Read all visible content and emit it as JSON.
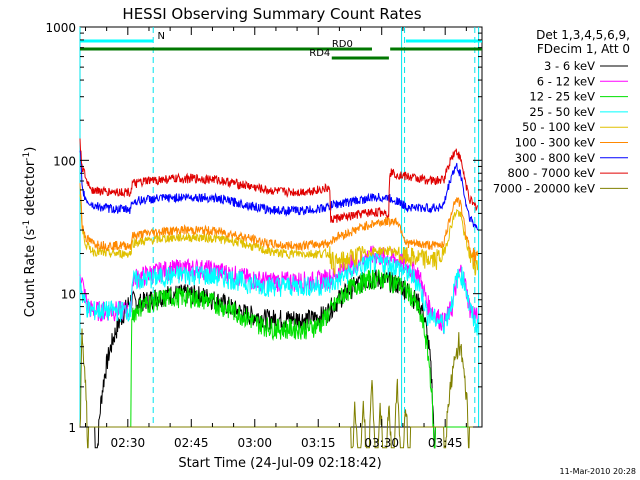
{
  "chart_data": {
    "type": "line",
    "title": "HESSI Observing Summary Count Rates",
    "xlabel": "Start Time (24-Jul-09 02:18:42)",
    "ylabel_main": "Count Rate (s",
    "ylabel_sup1": "-1",
    "ylabel_mid": " detector",
    "ylabel_sup2": "-1",
    "ylabel_end": ")",
    "yscale": "log",
    "ylim": [
      1,
      1000
    ],
    "xlim_minutes": [
      0,
      95
    ],
    "x_ticks": [
      {
        "label": "02:30",
        "min": 11.3
      },
      {
        "label": "02:45",
        "min": 26.3
      },
      {
        "label": "03:00",
        "min": 41.3
      },
      {
        "label": "03:15",
        "min": 56.3
      },
      {
        "label": "03:30",
        "min": 71.3
      },
      {
        "label": "03:45",
        "min": 86.3
      }
    ],
    "y_ticks": [
      {
        "label": "1",
        "value": 1
      },
      {
        "label": "10",
        "value": 10
      },
      {
        "label": "100",
        "value": 100
      },
      {
        "label": "1000",
        "value": 1000
      }
    ],
    "legend_header": [
      "Det 1,3,4,5,6,9,",
      "FDecim 1, Att 0"
    ],
    "series": [
      {
        "name": "3 - 6 keV",
        "color": "#000000",
        "x": [
          0,
          1,
          2,
          3,
          3.5,
          12,
          14,
          18,
          22,
          26,
          30,
          34,
          37,
          40,
          44,
          48,
          52,
          55,
          58,
          61,
          64,
          67,
          70,
          73,
          76,
          78,
          80,
          81,
          84,
          86,
          87,
          89,
          90,
          92,
          94
        ],
        "y": [
          0,
          0,
          0,
          0,
          0,
          9,
          8.5,
          9.5,
          10,
          10,
          9.5,
          8.5,
          7.5,
          7,
          6.5,
          6.5,
          6.5,
          6.5,
          7,
          9,
          11,
          12.5,
          13,
          12.5,
          11.5,
          10,
          8.5,
          7.5,
          0,
          0,
          0,
          0,
          0,
          0,
          0
        ]
      },
      {
        "name": "6 - 12 keV",
        "color": "#ff00ff",
        "x": [
          0,
          1,
          2,
          3,
          4,
          12,
          12.5,
          16,
          20,
          24,
          28,
          32,
          36,
          40,
          44,
          48,
          52,
          56,
          60,
          63,
          66,
          69,
          72,
          75,
          78,
          80,
          82,
          84,
          86,
          88,
          89,
          90,
          91,
          92,
          94
        ],
        "y": [
          15,
          10,
          8,
          7.5,
          7.5,
          7.5,
          13,
          14,
          15,
          15.5,
          15.5,
          15,
          14,
          13,
          12.5,
          12.5,
          12.5,
          12.5,
          13.5,
          16,
          18,
          19.5,
          19,
          18,
          15.5,
          14,
          8.5,
          7,
          6,
          8,
          12,
          15,
          12,
          8,
          6.5
        ]
      },
      {
        "name": "12 - 25 keV",
        "color": "#00e000",
        "x": [
          0,
          12,
          12.3,
          14,
          18,
          22,
          26,
          30,
          34,
          38,
          42,
          46,
          50,
          54,
          57,
          60,
          63,
          66,
          69,
          72,
          75,
          78,
          80,
          81,
          84,
          86,
          88,
          89,
          90,
          91,
          92,
          94
        ],
        "y": [
          0,
          0,
          7,
          8,
          9,
          9.5,
          9.5,
          9,
          8,
          7,
          6,
          5.5,
          5.5,
          5.5,
          6,
          8,
          10.5,
          12,
          13,
          13,
          12,
          10,
          7.5,
          6,
          0,
          0,
          0,
          0,
          0,
          0,
          0,
          0
        ]
      },
      {
        "name": "25 - 50 keV",
        "color": "#00ffff",
        "x": [
          0,
          0.5,
          1.5,
          2.5,
          3.5,
          6,
          9,
          12,
          12.3,
          16,
          20,
          24,
          28,
          32,
          36,
          40,
          44,
          48,
          52,
          56,
          60,
          63,
          66,
          69,
          72,
          75,
          78,
          80,
          82,
          84,
          86,
          87,
          88,
          89,
          90,
          91,
          92,
          93,
          94
        ],
        "y": [
          14,
          10,
          8,
          7.5,
          7.5,
          7.5,
          7.5,
          7.5,
          12.5,
          13,
          13.5,
          14,
          14,
          13.5,
          13,
          12,
          11.5,
          11.5,
          11.5,
          11.5,
          12,
          14,
          16,
          17,
          17,
          16,
          14,
          12,
          7,
          6.5,
          6,
          7,
          9,
          13,
          14,
          12,
          8,
          6.5,
          5.5
        ]
      },
      {
        "name": "50 - 100 keV",
        "color": "#e0c000",
        "x": [
          0,
          0.5,
          1.5,
          3,
          6,
          9,
          12,
          12.3,
          16,
          20,
          24,
          28,
          32,
          36,
          40,
          44,
          48,
          52,
          56,
          59,
          60,
          61,
          64,
          67,
          70,
          73,
          75,
          76,
          77,
          80,
          84,
          86,
          87,
          88,
          89,
          90,
          91,
          92,
          93,
          94
        ],
        "y": [
          60,
          30,
          23,
          21,
          20,
          20,
          20,
          24,
          25,
          26,
          26.5,
          26.5,
          26,
          25,
          23,
          21,
          20,
          20,
          20,
          20,
          17,
          17,
          18.5,
          20,
          21,
          21,
          20.5,
          19,
          19,
          18.5,
          18,
          20,
          26,
          35,
          42,
          38,
          26,
          20,
          17,
          16
        ]
      },
      {
        "name": "100 - 300 keV",
        "color": "#ff8800",
        "x": [
          0,
          0.5,
          1.5,
          3,
          6,
          9,
          12,
          12.3,
          16,
          20,
          24,
          28,
          32,
          36,
          40,
          44,
          48,
          52,
          56,
          59,
          60,
          61,
          64,
          67,
          70,
          73,
          75,
          76,
          77,
          80,
          84,
          86,
          87,
          88,
          89,
          90,
          91,
          92,
          93,
          94
        ],
        "y": [
          70,
          32,
          26,
          24,
          23,
          23,
          23,
          27,
          28.5,
          29.5,
          30,
          30,
          29.5,
          28,
          26,
          24,
          23,
          23,
          23.5,
          24,
          26,
          27,
          29,
          32,
          34,
          35,
          35,
          30,
          24,
          23.5,
          23,
          24,
          32,
          44,
          52,
          46,
          30,
          22,
          19,
          18
        ]
      },
      {
        "name": "300 - 800 keV",
        "color": "#0000ff",
        "x": [
          0,
          0.5,
          1.5,
          3,
          6,
          9,
          12,
          12.3,
          16,
          20,
          24,
          28,
          32,
          36,
          40,
          44,
          48,
          52,
          56,
          59,
          60,
          61,
          64,
          67,
          70,
          73,
          75,
          76,
          77,
          80,
          84,
          86,
          87,
          88,
          89,
          90,
          91,
          92,
          93,
          94
        ],
        "y": [
          120,
          60,
          50,
          46,
          44,
          43,
          43,
          49,
          51,
          52,
          53,
          53,
          52,
          49,
          46,
          43,
          42,
          42,
          43,
          45,
          47,
          47,
          49,
          51,
          53,
          52,
          50,
          47,
          45,
          44,
          44,
          46,
          62,
          80,
          90,
          78,
          50,
          38,
          33,
          31
        ]
      },
      {
        "name": "800 - 7000 keV",
        "color": "#e00000",
        "x": [
          0,
          0.5,
          1.5,
          3,
          6,
          9,
          12,
          12.3,
          16,
          20,
          24,
          28,
          32,
          36,
          40,
          44,
          48,
          52,
          56,
          59,
          59.2,
          61,
          64,
          67,
          70,
          72,
          73,
          73.2,
          76,
          80,
          84,
          86,
          87,
          88,
          89,
          90,
          91,
          92,
          93,
          94
        ],
        "y": [
          135,
          90,
          70,
          60,
          58,
          58,
          58,
          66,
          70,
          72,
          73,
          73,
          72,
          68,
          64,
          60,
          58,
          58,
          60,
          62,
          36,
          37,
          38,
          40,
          41,
          41,
          40,
          82,
          77,
          73,
          70,
          72,
          90,
          110,
          118,
          100,
          70,
          52,
          46,
          45
        ]
      },
      {
        "name": "7000 - 20000 keV",
        "color": "#808000",
        "x": [
          0,
          0.5,
          1,
          1.5,
          2,
          60,
          64,
          65,
          66,
          67,
          68,
          69,
          70,
          71,
          72,
          73,
          74,
          75,
          76,
          77,
          78,
          85,
          86,
          87,
          88,
          89,
          89.5,
          90,
          90.5,
          91,
          91.5,
          92,
          94
        ],
        "y": [
          0,
          5,
          3,
          1.5,
          0,
          0,
          0,
          1.5,
          0,
          1.5,
          0,
          2,
          0,
          1.5,
          0,
          1.5,
          0,
          2,
          0,
          1.5,
          0,
          0,
          0,
          1.6,
          2.5,
          3.5,
          4.5,
          3.8,
          2.8,
          2,
          1.5,
          0,
          0
        ]
      }
    ],
    "dashed_markers_min": [
      17.3,
      76.7,
      93.3
    ],
    "solid_markers_min": [
      0,
      76,
      94.2
    ],
    "flags": [
      {
        "label": "N",
        "color": "#00ffff",
        "x0": 0,
        "x1": 17.3,
        "yrow": 1
      },
      {
        "label": "",
        "color": "#00ffff",
        "x0": 77,
        "x1": 95,
        "yrow": 1
      },
      {
        "label": "RD0",
        "color": "#007700",
        "x0": 0,
        "x1": 69,
        "yrow": 2
      },
      {
        "label": "",
        "color": "#007700",
        "x0": 73.3,
        "x1": 95,
        "yrow": 2
      },
      {
        "label": "RD4",
        "color": "#007700",
        "x0": 59.5,
        "x1": 73,
        "yrow": 3
      }
    ],
    "footer_date": "11-Mar-2010 20:28"
  }
}
